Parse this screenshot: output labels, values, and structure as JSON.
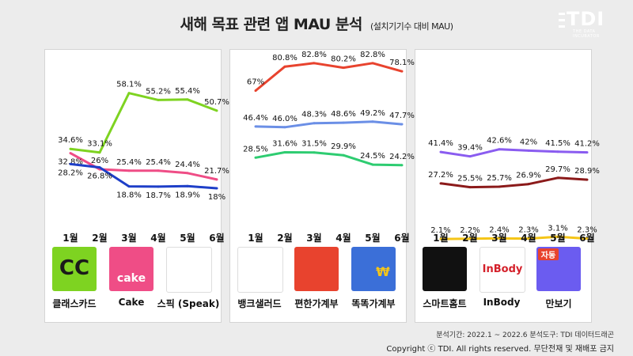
{
  "header": {
    "title": "새해 목표 관련 앱 MAU 분석",
    "subtitle": "(설치기기수 대비 MAU)",
    "logo_text": "TDI",
    "logo_sub": "THE DATA INCUBATOR"
  },
  "months": [
    "1월",
    "2월",
    "3월",
    "4월",
    "5월",
    "6월"
  ],
  "chart_data": [
    {
      "type": "line",
      "x": [
        "1월",
        "2월",
        "3월",
        "4월",
        "5월",
        "6월"
      ],
      "y_unit": "%",
      "ylim": [
        0,
        100
      ],
      "series": [
        {
          "name": "클래스카드",
          "color": "#7ed321",
          "values": [
            34.6,
            33.1,
            58.1,
            55.2,
            55.4,
            50.7
          ],
          "labels": [
            "34.6%",
            "33.1%",
            "58.1%",
            "55.2%",
            "55.4%",
            "50.7%"
          ]
        },
        {
          "name": "Cake",
          "color": "#ef4d86",
          "values": [
            32.8,
            26.0,
            25.4,
            25.4,
            24.4,
            21.7
          ],
          "labels": [
            "32.8%",
            "26%",
            "25.4%",
            "25.4%",
            "24.4%",
            "21.7%"
          ]
        },
        {
          "name": "스픽 (Speak)",
          "color": "#1e3fc8",
          "values": [
            28.2,
            26.8,
            18.8,
            18.7,
            18.9,
            18.0
          ],
          "labels": [
            "28.2%",
            "26.8%",
            "18.8%",
            "18.7%",
            "18.9%",
            "18%"
          ]
        }
      ]
    },
    {
      "type": "line",
      "x": [
        "1월",
        "2월",
        "3월",
        "4월",
        "5월",
        "6월"
      ],
      "y_unit": "%",
      "ylim": [
        0,
        100
      ],
      "series": [
        {
          "name": "편한가계부",
          "color": "#e8432e",
          "values": [
            67.0,
            80.8,
            82.8,
            80.2,
            82.8,
            78.1
          ],
          "labels": [
            "67%",
            "80.8%",
            "82.8%",
            "80.2%",
            "82.8%",
            "78.1%"
          ]
        },
        {
          "name": "뱅크샐러드",
          "color": "#6b8fe6",
          "values": [
            46.4,
            46.0,
            48.3,
            48.6,
            49.2,
            47.7
          ],
          "labels": [
            "46.4%",
            "46.0%",
            "48.3%",
            "48.6%",
            "49.2%",
            "47.7%"
          ]
        },
        {
          "name": "똑똑가계부",
          "color": "#2ecc71",
          "values": [
            28.5,
            31.6,
            31.5,
            29.9,
            24.5,
            24.2
          ],
          "labels": [
            "28.5%",
            "31.6%",
            "31.5%",
            "29.9%",
            "24.5%",
            "24.2%"
          ]
        }
      ]
    },
    {
      "type": "line",
      "x": [
        "1월",
        "2월",
        "3월",
        "4월",
        "5월",
        "6월"
      ],
      "y_unit": "%",
      "ylim": [
        0,
        100
      ],
      "series": [
        {
          "name": "만보기",
          "color": "#8a5cf0",
          "values": [
            41.4,
            39.4,
            42.6,
            42.0,
            41.5,
            41.2
          ],
          "labels": [
            "41.4%",
            "39.4%",
            "42.6%",
            "42%",
            "41.5%",
            "41.2%"
          ]
        },
        {
          "name": "InBody",
          "color": "#8b1a1a",
          "values": [
            27.2,
            25.5,
            25.7,
            26.9,
            29.7,
            28.9
          ],
          "labels": [
            "27.2%",
            "25.5%",
            "25.7%",
            "26.9%",
            "29.7%",
            "28.9%"
          ]
        },
        {
          "name": "스마트홈트",
          "color": "#f5c518",
          "values": [
            2.1,
            2.2,
            2.4,
            2.3,
            3.1,
            2.3
          ],
          "labels": [
            "2.1%",
            "2.2%",
            "2.4%",
            "2.3%",
            "3.1%",
            "2.3%"
          ]
        }
      ]
    }
  ],
  "apps": [
    {
      "name": "클래스카드",
      "icon": "classcard-icon",
      "icon_text": "CC",
      "icon_color": "#7ed321"
    },
    {
      "name": "Cake",
      "icon": "cake-icon",
      "icon_text": "cake",
      "icon_color": "#ef4d86"
    },
    {
      "name": "스픽 (Speak)",
      "icon": "speak-icon",
      "icon_text": "",
      "icon_color": "#ffffff"
    },
    {
      "name": "뱅크샐러드",
      "icon": "banksalad-icon",
      "icon_text": "",
      "icon_color": "#ffffff"
    },
    {
      "name": "편한가계부",
      "icon": "piggy-bank-icon",
      "icon_text": "",
      "icon_color": "#e8432e"
    },
    {
      "name": "똑똑가계부",
      "icon": "lightbulb-icon",
      "icon_text": "₩",
      "icon_color": "#3b6fd8"
    },
    {
      "name": "스마트홈트",
      "icon": "smarthomet-icon",
      "icon_text": "",
      "icon_color": "#111111"
    },
    {
      "name": "InBody",
      "icon": "inbody-icon",
      "icon_text": "InBody",
      "icon_color": "#ffffff"
    },
    {
      "name": "만보기",
      "icon": "pedometer-icon",
      "icon_text": "자동",
      "icon_color": "#6b5cf0"
    }
  ],
  "footer": {
    "period": "분석기간: 2022.1 ~ 2022.6   분석도구: TDI 데이터드래곤",
    "copyright": "Copyright ⓒ TDI. All rights reserved. 무단전재 및 재배포 금지"
  }
}
